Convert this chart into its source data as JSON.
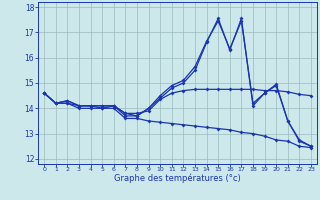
{
  "xlabel": "Graphe des températures (°c)",
  "background_color": "#cce8ea",
  "line_color": "#1a35b0",
  "grid_color": "#99bbbb",
  "xlim": [
    -0.5,
    23.5
  ],
  "ylim": [
    11.8,
    18.2
  ],
  "x_ticks": [
    0,
    1,
    2,
    3,
    4,
    5,
    6,
    7,
    8,
    9,
    10,
    11,
    12,
    13,
    14,
    15,
    16,
    17,
    18,
    19,
    20,
    21,
    22,
    23
  ],
  "y_ticks": [
    12,
    13,
    14,
    15,
    16,
    17,
    18
  ],
  "line1": [
    14.6,
    14.2,
    14.2,
    14.1,
    14.1,
    14.0,
    14.1,
    13.7,
    13.7,
    14.0,
    14.4,
    14.8,
    15.0,
    15.5,
    16.6,
    17.55,
    16.3,
    17.55,
    14.1,
    14.6,
    14.9,
    13.5,
    12.7,
    12.5
  ],
  "line2": [
    14.6,
    14.2,
    14.3,
    14.1,
    14.1,
    14.1,
    14.1,
    13.8,
    13.7,
    14.0,
    14.5,
    14.9,
    15.1,
    15.65,
    16.65,
    17.45,
    16.35,
    17.45,
    14.2,
    14.6,
    14.95,
    13.5,
    12.75,
    12.5
  ],
  "line3": [
    14.6,
    14.2,
    14.3,
    14.1,
    14.1,
    14.1,
    14.1,
    13.8,
    13.8,
    13.9,
    14.35,
    14.6,
    14.7,
    14.75,
    14.75,
    14.75,
    14.75,
    14.75,
    14.75,
    14.7,
    14.7,
    14.65,
    14.55,
    14.5
  ],
  "line4": [
    14.6,
    14.2,
    14.2,
    14.0,
    14.0,
    14.0,
    14.0,
    13.6,
    13.6,
    13.5,
    13.45,
    13.4,
    13.35,
    13.3,
    13.25,
    13.2,
    13.15,
    13.05,
    13.0,
    12.9,
    12.75,
    12.7,
    12.5,
    12.45
  ]
}
